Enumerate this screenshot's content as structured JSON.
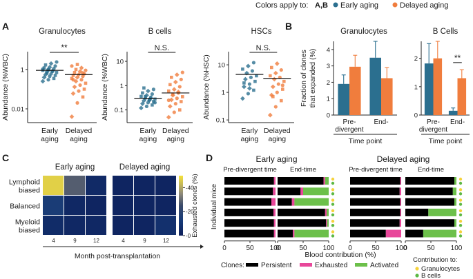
{
  "legend": {
    "prefix": "Colors apply to:",
    "panels": "A,B",
    "early": "Early aging",
    "delayed": "Delayed aging",
    "early_color": "#2b6f8f",
    "delayed_color": "#f07d3d"
  },
  "panel_labels": [
    "A",
    "B",
    "C",
    "D"
  ],
  "chart_data": [
    {
      "id": "A",
      "type": "scatter",
      "subplots": [
        {
          "title": "Granulocytes",
          "ylabel": "Abundance (%WBC)",
          "scale": "log",
          "ylim": [
            0.002,
            8
          ],
          "yticks": [
            "1",
            "0.01"
          ],
          "ytick_values": [
            1,
            0.01
          ],
          "groups": [
            "Early",
            "Delayed"
          ],
          "group_labels": [
            [
              "Early",
              "aging"
            ],
            [
              "Delayed",
              "aging"
            ]
          ],
          "medians": [
            0.9,
            0.55
          ],
          "early": [
            0.25,
            0.3,
            0.35,
            0.4,
            0.45,
            0.5,
            0.55,
            0.6,
            0.7,
            0.75,
            0.8,
            0.9,
            1.0,
            1.1,
            1.2,
            1.3,
            1.5,
            1.7,
            2.0,
            2.4,
            0.65,
            0.85,
            1.05,
            0.95
          ],
          "delayed": [
            0.004,
            0.02,
            0.04,
            0.06,
            0.08,
            0.1,
            0.13,
            0.16,
            0.2,
            0.25,
            0.3,
            0.35,
            0.4,
            0.45,
            0.5,
            0.55,
            0.6,
            0.7,
            0.8,
            0.9,
            1.0,
            1.2,
            1.5,
            1.8,
            0.65,
            0.3
          ],
          "significance": "**"
        },
        {
          "title": "B cells",
          "ylabel": "Abundance (%WBC)",
          "scale": "log",
          "ylim": [
            0.03,
            25
          ],
          "yticks": [
            "10",
            "1",
            "0.1"
          ],
          "ytick_values": [
            10,
            1,
            0.1
          ],
          "groups": [
            "Early",
            "Delayed"
          ],
          "group_labels": [
            [
              "Early",
              "aging"
            ],
            [
              "Delayed",
              "aging"
            ]
          ],
          "medians": [
            0.3,
            0.5
          ],
          "early": [
            0.12,
            0.14,
            0.16,
            0.18,
            0.2,
            0.22,
            0.24,
            0.26,
            0.28,
            0.3,
            0.33,
            0.36,
            0.4,
            0.45,
            0.5,
            0.6,
            0.7,
            0.8,
            0.25,
            0.2,
            0.35,
            0.3
          ],
          "delayed": [
            0.05,
            0.08,
            0.1,
            0.14,
            0.18,
            0.22,
            0.26,
            0.3,
            0.35,
            0.4,
            0.5,
            0.6,
            0.7,
            0.9,
            1.1,
            1.4,
            1.8,
            2.2,
            2.8,
            3.5,
            0.45,
            0.55,
            0.25
          ],
          "significance": "N.S."
        },
        {
          "title": "HSCs",
          "ylabel": "Abundance (%HSC)",
          "scale": "log",
          "ylim": [
            0.08,
            30
          ],
          "yticks": [
            "10",
            "1",
            "0.1"
          ],
          "ytick_values": [
            10,
            1,
            0.1
          ],
          "groups": [
            "Early",
            "Delayed"
          ],
          "group_labels": [
            [
              "Early",
              "aging"
            ],
            [
              "Delayed",
              "aging"
            ]
          ],
          "medians": [
            4.5,
            3.2
          ],
          "early": [
            0.6,
            0.9,
            1.2,
            1.6,
            2.0,
            2.5,
            3.0,
            3.5,
            4.0,
            5.0,
            6.0,
            7.0,
            9.0,
            12.0,
            2.2,
            1.4
          ],
          "delayed": [
            0.15,
            0.3,
            0.5,
            0.8,
            1.0,
            1.3,
            1.6,
            2.0,
            2.5,
            3.0,
            3.5,
            4.0,
            5.0,
            6.5,
            8.0,
            11.0,
            1.8,
            0.7
          ],
          "significance": "N.S."
        }
      ]
    },
    {
      "id": "B",
      "type": "bar",
      "ylabel": "Fraction of clones that expanded (%)",
      "ylabel_lines": [
        "Fraction of clones",
        "that expanded (%)"
      ],
      "subplots": [
        {
          "title": "Granulocytes",
          "ylim": [
            0,
            4.5
          ],
          "yticks": [
            0,
            1,
            2,
            3,
            4
          ],
          "categories": [
            [
              "Pre-",
              "divergent"
            ],
            [
              "End-"
            ]
          ],
          "series": [
            {
              "name": "Early aging",
              "values": [
                1.9,
                3.5
              ],
              "errors": [
                0.55,
                1.0
              ]
            },
            {
              "name": "Delayed aging",
              "values": [
                2.95,
                2.25
              ],
              "errors": [
                0.7,
                0.65
              ]
            }
          ],
          "xlabel": "Time point",
          "significance": ""
        },
        {
          "title": "B Cells",
          "ylim": [
            0,
            2.6
          ],
          "yticks": [
            0,
            1,
            2
          ],
          "categories": [
            [
              "Pre-",
              "divergent"
            ],
            [
              "End-"
            ]
          ],
          "series": [
            {
              "name": "Early aging",
              "values": [
                1.82,
                0.15
              ],
              "errors": [
                0.7,
                0.1
              ]
            },
            {
              "name": "Delayed aging",
              "values": [
                2.0,
                1.3
              ],
              "errors": [
                0.6,
                0.3
              ]
            }
          ],
          "xlabel": "Time point",
          "significance": "**"
        }
      ]
    },
    {
      "id": "C",
      "type": "heatmap",
      "rows": [
        [
          "Lymphoid",
          "biased"
        ],
        [
          "Balanced"
        ],
        [
          "Myeloid",
          "biased"
        ]
      ],
      "columns": [
        "4",
        "9",
        "12"
      ],
      "xlabel": "Month post-transplantation",
      "colorbar_label": "Exhausted clones (%)",
      "colorbar_ticks": [
        0,
        20,
        40
      ],
      "colorbar_range": [
        0,
        50
      ],
      "subplots": [
        {
          "title": "Early aging",
          "values": [
            [
              47,
              28,
              5
            ],
            [
              14,
              4,
              3
            ],
            [
              6,
              4,
              4
            ]
          ]
        },
        {
          "title": "Delayed aging",
          "values": [
            [
              3,
              3,
              3
            ],
            [
              3,
              3,
              3
            ],
            [
              3,
              3,
              8
            ]
          ]
        }
      ]
    },
    {
      "id": "D",
      "type": "bar",
      "orientation": "horizontal-stacked",
      "ylabel": "Individual mice",
      "xlabel": "Blood contribution (%)",
      "xticks": [
        0,
        50,
        100
      ],
      "legend_prefix": "Clones:",
      "categories": [
        "Persistent",
        "Exhausted",
        "Activated"
      ],
      "category_colors": [
        "#000000",
        "#e8479a",
        "#6cc04a"
      ],
      "contribution_label": "Contribution to:",
      "contribution": [
        {
          "name": "Granulocytes",
          "color": "#f5d23c"
        },
        {
          "name": "B cells",
          "color": "#5cb843"
        }
      ],
      "groups": [
        {
          "title": "Early aging",
          "pre": [
            [
              97,
              3,
              0
            ],
            [
              95,
              5,
              0
            ],
            [
              92,
              8,
              0
            ],
            [
              96,
              4,
              0
            ],
            [
              97,
              3,
              0
            ],
            [
              97,
              3,
              0
            ]
          ],
          "end": [
            [
              90,
              3,
              7
            ],
            [
              45,
              5,
              50
            ],
            [
              28,
              5,
              67
            ],
            [
              93,
              3,
              4
            ],
            [
              95,
              2,
              3
            ],
            [
              30,
              3,
              67
            ]
          ]
        },
        {
          "title": "Delayed aging",
          "pre": [
            [
              98,
              2,
              0
            ],
            [
              97,
              3,
              0
            ],
            [
              98,
              2,
              0
            ],
            [
              98,
              2,
              0
            ],
            [
              97,
              3,
              0
            ],
            [
              70,
              30,
              0
            ]
          ],
          "end": [
            [
              96,
              0,
              4
            ],
            [
              93,
              0,
              7
            ],
            [
              96,
              0,
              4
            ],
            [
              45,
              0,
              55
            ],
            [
              96,
              0,
              4
            ],
            [
              35,
              0,
              65
            ]
          ]
        }
      ],
      "subtitles": {
        "pre": "Pre-divergent time",
        "end": "End-time"
      }
    }
  ]
}
